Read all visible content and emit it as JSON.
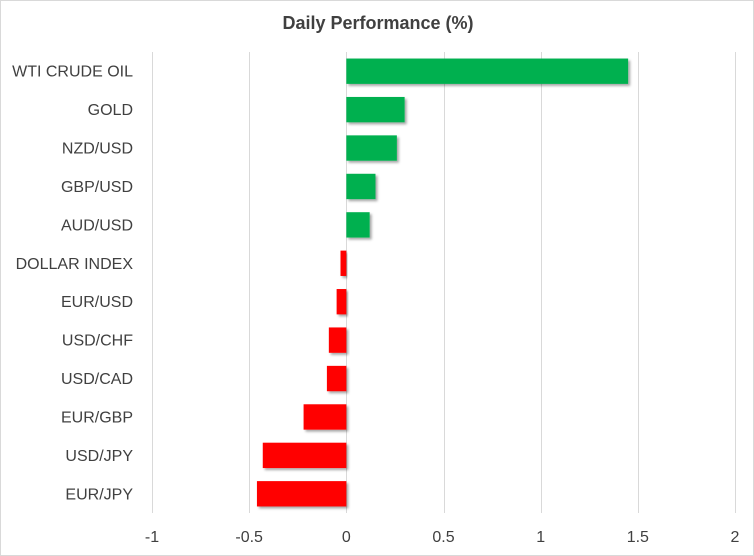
{
  "chart_data": {
    "type": "bar",
    "orientation": "horizontal",
    "title": "Daily Performance (%)",
    "categories": [
      "WTI CRUDE OIL",
      "GOLD",
      "NZD/USD",
      "GBP/USD",
      "AUD/USD",
      "DOLLAR INDEX",
      "EUR/USD",
      "USD/CHF",
      "USD/CAD",
      "EUR/GBP",
      "USD/JPY",
      "EUR/JPY"
    ],
    "values": [
      1.45,
      0.3,
      0.26,
      0.15,
      0.12,
      -0.03,
      -0.05,
      -0.09,
      -0.1,
      -0.22,
      -0.43,
      -0.46
    ],
    "xlim": [
      -1,
      2
    ],
    "x_ticks": [
      -1,
      -0.5,
      0,
      0.5,
      1,
      1.5,
      2
    ],
    "x_tick_labels": [
      "-1",
      "-0.5",
      "0",
      "0.5",
      "1",
      "1.5",
      "2"
    ],
    "grid": "vertical",
    "colors": {
      "positive": "#00b050",
      "negative": "#ff0000",
      "grid": "#d9d9d9",
      "text": "#404040"
    }
  }
}
